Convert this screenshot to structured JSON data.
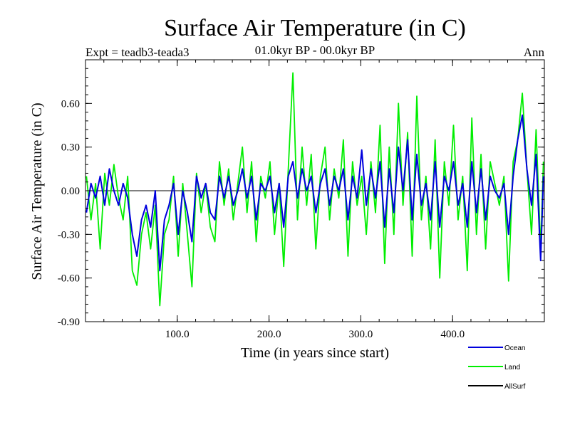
{
  "chart_data": {
    "type": "line",
    "title": "Surface Air Temperature (in C)",
    "subtitle": "01.0kyr BP - 00.0kyr BP",
    "experiment_label": "Expt = teadb3-teada3",
    "period_label": "Ann",
    "xlabel": "Time (in years since start)",
    "ylabel": "Surface Air Temperature (in C)",
    "xlim": [
      0,
      500
    ],
    "ylim": [
      -0.9,
      0.9
    ],
    "x_ticks": [
      100,
      200,
      300,
      400
    ],
    "x_tick_labels": [
      "100.0",
      "200.0",
      "300.0",
      "400.0"
    ],
    "y_ticks": [
      -0.9,
      -0.6,
      -0.3,
      0.0,
      0.3,
      0.6
    ],
    "y_tick_labels": [
      "-0.90",
      "-0.60",
      "-0.30",
      "0.00",
      "0.30",
      "0.60"
    ],
    "zero_line": true,
    "series": [
      {
        "name": "Land",
        "color": "#00ee00",
        "x": [
          1,
          6,
          11,
          16,
          21,
          26,
          31,
          36,
          41,
          46,
          51,
          56,
          61,
          66,
          71,
          76,
          81,
          86,
          91,
          96,
          101,
          106,
          111,
          116,
          121,
          126,
          131,
          136,
          141,
          146,
          151,
          156,
          161,
          166,
          171,
          176,
          181,
          186,
          191,
          196,
          201,
          206,
          211,
          216,
          221,
          226,
          231,
          236,
          241,
          246,
          251,
          256,
          261,
          266,
          271,
          276,
          281,
          286,
          291,
          296,
          301,
          306,
          311,
          316,
          321,
          326,
          331,
          336,
          341,
          346,
          351,
          356,
          361,
          366,
          371,
          376,
          381,
          386,
          391,
          396,
          401,
          406,
          411,
          416,
          421,
          426,
          431,
          436,
          441,
          446,
          451,
          456,
          461,
          466,
          471,
          476,
          481,
          486,
          491,
          496,
          499
        ],
        "values": [
          0.1,
          -0.2,
          0.05,
          -0.4,
          0.12,
          -0.1,
          0.18,
          -0.05,
          -0.2,
          0.1,
          -0.55,
          -0.65,
          -0.3,
          -0.15,
          -0.4,
          -0.1,
          -0.79,
          -0.3,
          -0.2,
          0.1,
          -0.45,
          0.05,
          -0.3,
          -0.66,
          0.12,
          -0.15,
          0.05,
          -0.25,
          -0.35,
          0.2,
          -0.1,
          0.15,
          -0.2,
          0.05,
          0.3,
          -0.15,
          0.2,
          -0.35,
          0.1,
          -0.05,
          0.2,
          -0.3,
          0.05,
          -0.52,
          0.15,
          0.81,
          -0.2,
          0.3,
          -0.1,
          0.25,
          -0.4,
          0.1,
          0.3,
          -0.2,
          0.15,
          -0.05,
          0.35,
          -0.45,
          0.2,
          -0.1,
          0.1,
          -0.3,
          0.2,
          -0.15,
          0.45,
          -0.5,
          0.3,
          -0.3,
          0.6,
          -0.1,
          0.4,
          -0.45,
          0.65,
          -0.2,
          0.1,
          -0.4,
          0.35,
          -0.6,
          0.2,
          -0.1,
          0.45,
          -0.2,
          0.1,
          -0.55,
          0.5,
          -0.3,
          0.25,
          -0.4,
          0.2,
          0.05,
          -0.1,
          0.1,
          -0.62,
          0.2,
          0.35,
          0.67,
          0.15,
          -0.3,
          0.42,
          -0.4,
          0.2
        ]
      },
      {
        "name": "Ocean",
        "color": "#0000dd",
        "x": [
          1,
          6,
          11,
          16,
          21,
          26,
          31,
          36,
          41,
          46,
          51,
          56,
          61,
          66,
          71,
          76,
          81,
          86,
          91,
          96,
          101,
          106,
          111,
          116,
          121,
          126,
          131,
          136,
          141,
          146,
          151,
          156,
          161,
          166,
          171,
          176,
          181,
          186,
          191,
          196,
          201,
          206,
          211,
          216,
          221,
          226,
          231,
          236,
          241,
          246,
          251,
          256,
          261,
          266,
          271,
          276,
          281,
          286,
          291,
          296,
          301,
          306,
          311,
          316,
          321,
          326,
          331,
          336,
          341,
          346,
          351,
          356,
          361,
          366,
          371,
          376,
          381,
          386,
          391,
          396,
          401,
          406,
          411,
          416,
          421,
          426,
          431,
          436,
          441,
          446,
          451,
          456,
          461,
          466,
          471,
          476,
          481,
          486,
          491,
          496,
          499
        ],
        "values": [
          -0.15,
          0.05,
          -0.05,
          0.1,
          -0.1,
          0.15,
          0.0,
          -0.1,
          0.05,
          -0.05,
          -0.3,
          -0.45,
          -0.2,
          -0.1,
          -0.25,
          0.0,
          -0.55,
          -0.2,
          -0.1,
          0.05,
          -0.3,
          0.0,
          -0.15,
          -0.35,
          0.1,
          -0.05,
          0.05,
          -0.15,
          -0.2,
          0.1,
          -0.05,
          0.1,
          -0.1,
          0.0,
          0.15,
          -0.05,
          0.1,
          -0.2,
          0.05,
          0.0,
          0.1,
          -0.15,
          0.05,
          -0.25,
          0.1,
          0.2,
          -0.05,
          0.15,
          0.0,
          0.1,
          -0.15,
          0.05,
          0.15,
          -0.1,
          0.1,
          0.0,
          0.15,
          -0.2,
          0.1,
          -0.05,
          0.28,
          -0.1,
          0.15,
          -0.05,
          0.2,
          -0.25,
          0.15,
          -0.15,
          0.3,
          0.0,
          0.35,
          -0.2,
          0.25,
          -0.1,
          0.05,
          -0.2,
          0.2,
          -0.25,
          0.1,
          0.0,
          0.2,
          -0.1,
          0.05,
          -0.25,
          0.2,
          -0.15,
          0.15,
          -0.2,
          0.1,
          0.0,
          -0.05,
          0.05,
          -0.3,
          0.1,
          0.35,
          0.52,
          0.15,
          -0.1,
          0.25,
          -0.48,
          0.1
        ]
      },
      {
        "name": "AllSurf",
        "color": "#000000",
        "x": [],
        "values": []
      }
    ]
  }
}
